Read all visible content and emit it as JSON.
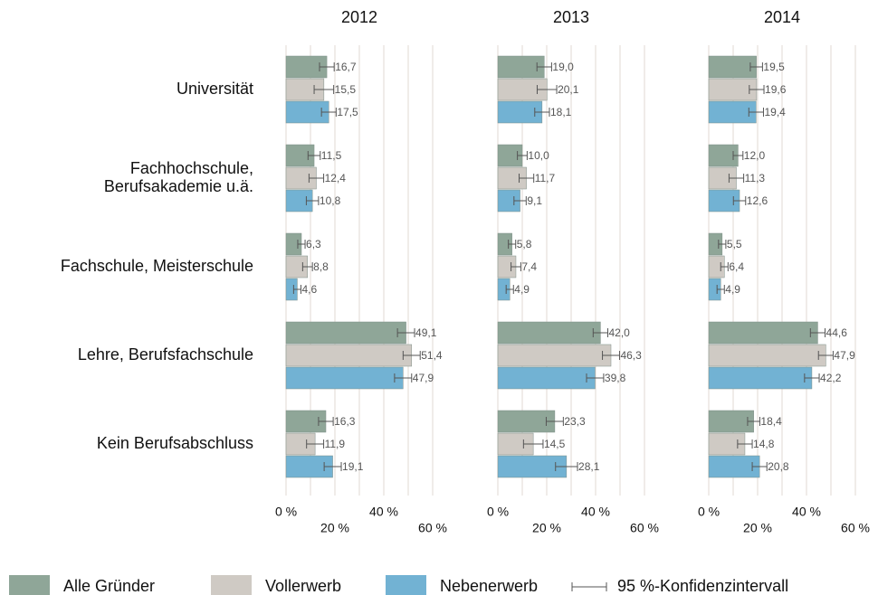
{
  "chart_data": {
    "type": "bar",
    "orientation": "horizontal",
    "categories": [
      "Universität",
      [
        "Fachhochschule,",
        "Berufsakademie u.ä."
      ],
      "Fachschule, Meisterschule",
      "Lehre, Berufsfachschule",
      "Kein Berufsabschluss"
    ],
    "series": [
      {
        "name": "Alle Gründer",
        "color": "#8fa698"
      },
      {
        "name": "Vollerwerb",
        "color": "#cfcac4"
      },
      {
        "name": "Nebenerwerb",
        "color": "#72b2d3"
      }
    ],
    "error_legend": "95 %-Konfidenzintervall",
    "xlim": [
      0,
      60
    ],
    "xticks": [
      {
        "value": 0,
        "label": "0 %"
      },
      {
        "value": 20,
        "label": "20 %"
      },
      {
        "value": 40,
        "label": "40 %"
      },
      {
        "value": 60,
        "label": "60 %"
      }
    ],
    "minor_xticks": [
      10,
      30,
      50
    ],
    "grid": true,
    "panels": [
      {
        "title": "2012",
        "series": [
          {
            "values": [
              16.7,
              11.5,
              6.3,
              49.1,
              16.3
            ],
            "value_labels": [
              "16,7",
              "11,5",
              "6,3",
              "49,1",
              "16,3"
            ],
            "errors": [
              3,
              2.5,
              1.5,
              3.5,
              3
            ]
          },
          {
            "values": [
              15.5,
              12.4,
              8.8,
              51.4,
              11.9
            ],
            "value_labels": [
              "15,5",
              "12,4",
              "8,8",
              "51,4",
              "11,9"
            ],
            "errors": [
              4,
              3,
              2,
              3.5,
              3.5
            ]
          },
          {
            "values": [
              17.5,
              10.8,
              4.6,
              47.9,
              19.1
            ],
            "value_labels": [
              "17,5",
              "10,8",
              "4,6",
              "47,9",
              "19,1"
            ],
            "errors": [
              3,
              2.5,
              1.5,
              3.5,
              3.5
            ]
          }
        ]
      },
      {
        "title": "2013",
        "series": [
          {
            "values": [
              19.0,
              10.0,
              5.8,
              42.0,
              23.3
            ],
            "value_labels": [
              "19,0",
              "10,0",
              "5,8",
              "42,0",
              "23,3"
            ],
            "errors": [
              3,
              2,
              1.5,
              3,
              3.5
            ]
          },
          {
            "values": [
              20.1,
              11.7,
              7.4,
              46.3,
              14.5
            ],
            "value_labels": [
              "20,1",
              "11,7",
              "7,4",
              "46,3",
              "14,5"
            ],
            "errors": [
              4,
              3,
              2,
              3.5,
              4
            ]
          },
          {
            "values": [
              18.1,
              9.1,
              4.9,
              39.8,
              28.1
            ],
            "value_labels": [
              "18,1",
              "9,1",
              "4,9",
              "39,8",
              "28,1"
            ],
            "errors": [
              3,
              2.5,
              1.5,
              3.5,
              4.5
            ]
          }
        ]
      },
      {
        "title": "2014",
        "series": [
          {
            "values": [
              19.5,
              12.0,
              5.5,
              44.6,
              18.4
            ],
            "value_labels": [
              "19,5",
              "12,0",
              "5,5",
              "44,6",
              "18,4"
            ],
            "errors": [
              2.5,
              2,
              1.5,
              3,
              2.5
            ]
          },
          {
            "values": [
              19.6,
              11.3,
              6.4,
              47.9,
              14.8
            ],
            "value_labels": [
              "19,6",
              "11,3",
              "6,4",
              "47,9",
              "14,8"
            ],
            "errors": [
              3,
              3,
              1.5,
              3,
              3
            ]
          },
          {
            "values": [
              19.4,
              12.6,
              4.9,
              42.2,
              20.8
            ],
            "value_labels": [
              "19,4",
              "12,6",
              "4,9",
              "42,2",
              "20,8"
            ],
            "errors": [
              3,
              2.5,
              1.5,
              3,
              3
            ]
          }
        ]
      }
    ]
  }
}
